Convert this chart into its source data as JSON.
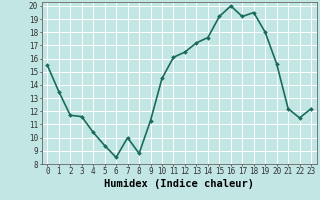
{
  "x": [
    0,
    1,
    2,
    3,
    4,
    5,
    6,
    7,
    8,
    9,
    10,
    11,
    12,
    13,
    14,
    15,
    16,
    17,
    18,
    19,
    20,
    21,
    22,
    23
  ],
  "y": [
    15.5,
    13.5,
    11.7,
    11.6,
    10.4,
    9.4,
    8.5,
    10.0,
    8.8,
    11.3,
    14.5,
    16.1,
    16.5,
    17.2,
    17.6,
    19.2,
    20.0,
    19.2,
    19.5,
    18.0,
    15.6,
    12.2,
    11.5,
    12.2
  ],
  "line_color": "#1a6b5a",
  "marker": "D",
  "marker_size": 2,
  "bg_color": "#c2e6e4",
  "grid_color": "#ffffff",
  "xlabel": "Humidex (Indice chaleur)",
  "ylim": [
    8,
    20.3
  ],
  "xlim": [
    -0.5,
    23.5
  ],
  "yticks": [
    8,
    9,
    10,
    11,
    12,
    13,
    14,
    15,
    16,
    17,
    18,
    19,
    20
  ],
  "xticks": [
    0,
    1,
    2,
    3,
    4,
    5,
    6,
    7,
    8,
    9,
    10,
    11,
    12,
    13,
    14,
    15,
    16,
    17,
    18,
    19,
    20,
    21,
    22,
    23
  ],
  "tick_label_size": 5.5,
  "xlabel_size": 7.5,
  "line_width": 1.2
}
